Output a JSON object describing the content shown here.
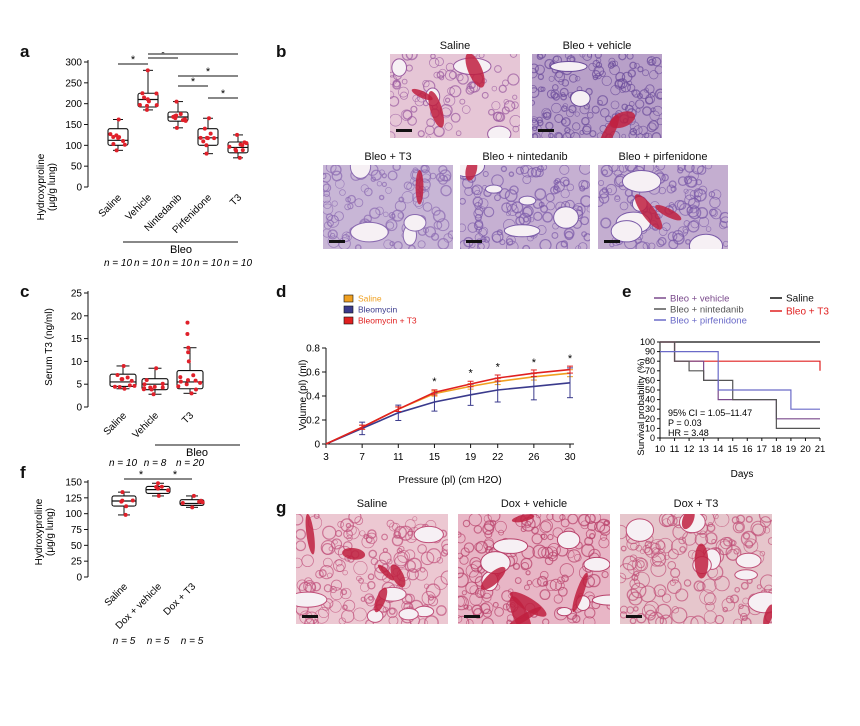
{
  "panels": {
    "a": {
      "letter": "a",
      "ylabel_line1": "Hydroxyproline",
      "ylabel_line2": "(μg/g lung)",
      "yticks": [
        "0",
        "50",
        "100",
        "150",
        "200",
        "250",
        "300"
      ],
      "ylim": [
        0,
        300
      ],
      "categories": [
        "Saline",
        "Vehicle",
        "Nintedanib",
        "Pirfenidone",
        "T3"
      ],
      "group_label": "Bleo",
      "n_labels": [
        "n = 10",
        "n = 10",
        "n = 10",
        "n = 10",
        "n = 10"
      ],
      "sig": "*",
      "chart_data": {
        "type": "box",
        "categories": [
          "Saline",
          "Vehicle",
          "Nintedanib",
          "Pirfenidone",
          "T3"
        ],
        "boxes": [
          {
            "min": 88,
            "q1": 100,
            "median": 112,
            "q3": 140,
            "max": 162
          },
          {
            "min": 185,
            "q1": 192,
            "median": 210,
            "q3": 225,
            "max": 280
          },
          {
            "min": 142,
            "q1": 158,
            "median": 168,
            "q3": 180,
            "max": 205
          },
          {
            "min": 80,
            "q1": 100,
            "median": 118,
            "q3": 140,
            "max": 165
          },
          {
            "min": 70,
            "q1": 82,
            "median": 95,
            "q3": 108,
            "max": 125
          }
        ],
        "ylim": [
          0,
          300
        ]
      }
    },
    "b": {
      "letter": "b",
      "images": [
        "Saline",
        "Bleo + vehicle",
        "Bleo + T3",
        "Bleo + nintedanib",
        "Bleo + pirfenidone"
      ]
    },
    "c": {
      "letter": "c",
      "ylabel": "Serum T3 (ng/ml)",
      "yticks": [
        "0",
        "5",
        "10",
        "15",
        "20",
        "25"
      ],
      "categories": [
        "Saline",
        "Vehicle",
        "T3"
      ],
      "group_label": "Bleo",
      "n_labels": [
        "n = 10",
        "n = 8",
        "n = 20"
      ],
      "chart_data": {
        "type": "box",
        "categories": [
          "Saline",
          "Vehicle",
          "T3"
        ],
        "boxes": [
          {
            "min": 4,
            "q1": 4.5,
            "median": 5.5,
            "q3": 7.2,
            "max": 9
          },
          {
            "min": 2.8,
            "q1": 3.8,
            "median": 5,
            "q3": 6.2,
            "max": 8.5
          },
          {
            "min": 3,
            "q1": 4,
            "median": 5.5,
            "q3": 8,
            "max": 13
          }
        ],
        "ylim": [
          0,
          25
        ]
      }
    },
    "d": {
      "letter": "d",
      "xlabel": "Pressure (pl) (cm H2O)",
      "ylabel": "Volume (pl) (ml)",
      "legend": [
        "Saline",
        "Bleomycin",
        "Bleomycin + T3"
      ],
      "sig": "*",
      "chart_data": {
        "type": "line",
        "x": [
          3,
          7,
          11,
          15,
          19,
          22,
          26,
          30
        ],
        "ylim": [
          0,
          0.8
        ],
        "yticks": [
          "0",
          "0.2",
          "0.4",
          "0.6",
          "0.8"
        ],
        "series": [
          {
            "name": "Saline",
            "color": "#f0a020",
            "values": [
              0,
              0.14,
              0.29,
              0.42,
              0.48,
              0.52,
              0.56,
              0.59
            ]
          },
          {
            "name": "Bleomycin",
            "color": "#3a3a8c",
            "values": [
              0,
              0.13,
              0.26,
              0.35,
              0.41,
              0.45,
              0.48,
              0.51
            ]
          },
          {
            "name": "Bleomycin + T3",
            "color": "#e02020",
            "values": [
              0,
              0.14,
              0.29,
              0.43,
              0.5,
              0.55,
              0.59,
              0.62
            ]
          }
        ]
      }
    },
    "e": {
      "letter": "e",
      "ylabel": "Survival probability (%)",
      "xlabel": "Days",
      "legend_left": [
        "Bleo + vehicle",
        "Bleo + nintedanib",
        "Bleo + pirfenidone"
      ],
      "legend_right": [
        "Saline",
        "Bleo + T3"
      ],
      "stats": [
        "95% CI = 1.05–11.47",
        "P = 0.03",
        "HR = 3.48"
      ],
      "chart_data": {
        "type": "line",
        "x": [
          10,
          11,
          12,
          13,
          14,
          15,
          16,
          17,
          18,
          19,
          20,
          21
        ],
        "xticks": [
          "10",
          "11",
          "12",
          "13",
          "14",
          "15",
          "16",
          "17",
          "18",
          "19",
          "20",
          "21"
        ],
        "yticks": [
          "0",
          "10",
          "20",
          "30",
          "40",
          "50",
          "60",
          "70",
          "80",
          "90",
          "100"
        ],
        "ylim": [
          0,
          100
        ],
        "series": [
          {
            "name": "Saline",
            "color": "#111111",
            "steps": [
              [
                10,
                100
              ],
              [
                21,
                100
              ]
            ]
          },
          {
            "name": "Bleo + T3",
            "color": "#e02020",
            "steps": [
              [
                10,
                100
              ],
              [
                11,
                80
              ],
              [
                21,
                80
              ],
              [
                21,
                70
              ]
            ]
          },
          {
            "name": "Bleo + vehicle",
            "color": "#7a4a8c",
            "steps": [
              [
                10,
                100
              ],
              [
                11,
                80
              ],
              [
                13,
                60
              ],
              [
                14,
                40
              ],
              [
                18,
                20
              ],
              [
                19,
                20
              ],
              [
                21,
                20
              ]
            ]
          },
          {
            "name": "Bleo + nintedanib",
            "color": "#555555",
            "steps": [
              [
                10,
                100
              ],
              [
                11,
                80
              ],
              [
                12,
                70
              ],
              [
                13,
                60
              ],
              [
                15,
                40
              ],
              [
                18,
                10
              ],
              [
                21,
                10
              ]
            ]
          },
          {
            "name": "Bleo + pirfenidone",
            "color": "#6a6ac8",
            "steps": [
              [
                10,
                90
              ],
              [
                11,
                90
              ],
              [
                14,
                50
              ],
              [
                19,
                30
              ],
              [
                21,
                30
              ]
            ]
          }
        ]
      }
    },
    "f": {
      "letter": "f",
      "ylabel_line1": "Hydroxyproline",
      "ylabel_line2": "(μg/g lung)",
      "yticks": [
        "0",
        "25",
        "50",
        "75",
        "100",
        "125",
        "150"
      ],
      "categories": [
        "Saline",
        "Dox + vehicle",
        "Dox + T3"
      ],
      "n_labels": [
        "n = 5",
        "n = 5",
        "n = 5"
      ],
      "sig": "*",
      "chart_data": {
        "type": "box",
        "categories": [
          "Saline",
          "Dox + vehicle",
          "Dox + T3"
        ],
        "boxes": [
          {
            "min": 98,
            "q1": 112,
            "median": 120,
            "q3": 128,
            "max": 134
          },
          {
            "min": 128,
            "q1": 132,
            "median": 138,
            "q3": 143,
            "max": 148
          },
          {
            "min": 110,
            "q1": 113,
            "median": 116,
            "q3": 122,
            "max": 128
          }
        ],
        "ylim": [
          0,
          150
        ]
      }
    },
    "g": {
      "letter": "g",
      "images": [
        "Saline",
        "Dox + vehicle",
        "Dox + T3"
      ]
    }
  },
  "colors": {
    "point_red": "#e0202a",
    "tissue_pink": "#e8b8c8",
    "tissue_purple": "#8a6ab0",
    "vessel_red": "#c02040"
  }
}
